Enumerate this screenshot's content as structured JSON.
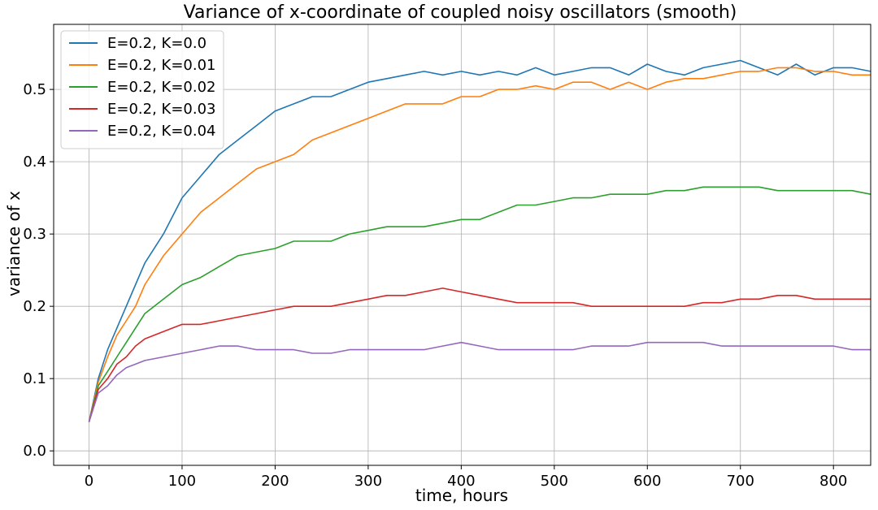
{
  "chart_data": {
    "type": "line",
    "title": "Variance of x-coordinate of coupled noisy oscillators (smooth)",
    "xlabel": "time, hours",
    "ylabel": "variance of x",
    "xlim": [
      -38,
      840
    ],
    "ylim": [
      -0.02,
      0.59
    ],
    "xticks": [
      0,
      100,
      200,
      300,
      400,
      500,
      600,
      700,
      800
    ],
    "yticks": [
      0.0,
      0.1,
      0.2,
      0.3,
      0.4,
      0.5
    ],
    "ytick_labels": [
      "0.0",
      "0.1",
      "0.2",
      "0.3",
      "0.4",
      "0.5"
    ],
    "grid": true,
    "legend_position": "upper-left",
    "x": [
      0,
      10,
      20,
      30,
      40,
      50,
      60,
      80,
      100,
      120,
      140,
      160,
      180,
      200,
      220,
      240,
      260,
      280,
      300,
      320,
      340,
      360,
      380,
      400,
      420,
      440,
      460,
      480,
      500,
      520,
      540,
      560,
      580,
      600,
      620,
      640,
      660,
      680,
      700,
      720,
      740,
      760,
      780,
      800,
      820,
      840
    ],
    "series": [
      {
        "name": "E=0.2, K=0.0",
        "color": "#1f77b4",
        "values": [
          0.04,
          0.1,
          0.14,
          0.17,
          0.2,
          0.23,
          0.26,
          0.3,
          0.35,
          0.38,
          0.41,
          0.43,
          0.45,
          0.47,
          0.48,
          0.49,
          0.49,
          0.5,
          0.51,
          0.515,
          0.52,
          0.525,
          0.52,
          0.525,
          0.52,
          0.525,
          0.52,
          0.53,
          0.52,
          0.525,
          0.53,
          0.53,
          0.52,
          0.535,
          0.525,
          0.52,
          0.53,
          0.535,
          0.54,
          0.53,
          0.52,
          0.535,
          0.52,
          0.53,
          0.53,
          0.525
        ]
      },
      {
        "name": "E=0.2, K=0.01",
        "color": "#ff7f0e",
        "values": [
          0.04,
          0.095,
          0.13,
          0.16,
          0.18,
          0.2,
          0.23,
          0.27,
          0.3,
          0.33,
          0.35,
          0.37,
          0.39,
          0.4,
          0.41,
          0.43,
          0.44,
          0.45,
          0.46,
          0.47,
          0.48,
          0.48,
          0.48,
          0.49,
          0.49,
          0.5,
          0.5,
          0.505,
          0.5,
          0.51,
          0.51,
          0.5,
          0.51,
          0.5,
          0.51,
          0.515,
          0.515,
          0.52,
          0.525,
          0.525,
          0.53,
          0.53,
          0.525,
          0.525,
          0.52,
          0.52
        ]
      },
      {
        "name": "E=0.2, K=0.02",
        "color": "#2ca02c",
        "values": [
          0.04,
          0.09,
          0.11,
          0.13,
          0.15,
          0.17,
          0.19,
          0.21,
          0.23,
          0.24,
          0.255,
          0.27,
          0.275,
          0.28,
          0.29,
          0.29,
          0.29,
          0.3,
          0.305,
          0.31,
          0.31,
          0.31,
          0.315,
          0.32,
          0.32,
          0.33,
          0.34,
          0.34,
          0.345,
          0.35,
          0.35,
          0.355,
          0.355,
          0.355,
          0.36,
          0.36,
          0.365,
          0.365,
          0.365,
          0.365,
          0.36,
          0.36,
          0.36,
          0.36,
          0.36,
          0.355
        ]
      },
      {
        "name": "E=0.2, K=0.03",
        "color": "#d62728",
        "values": [
          0.04,
          0.085,
          0.1,
          0.12,
          0.13,
          0.145,
          0.155,
          0.165,
          0.175,
          0.175,
          0.18,
          0.185,
          0.19,
          0.195,
          0.2,
          0.2,
          0.2,
          0.205,
          0.21,
          0.215,
          0.215,
          0.22,
          0.225,
          0.22,
          0.215,
          0.21,
          0.205,
          0.205,
          0.205,
          0.205,
          0.2,
          0.2,
          0.2,
          0.2,
          0.2,
          0.2,
          0.205,
          0.205,
          0.21,
          0.21,
          0.215,
          0.215,
          0.21,
          0.21,
          0.21,
          0.21
        ]
      },
      {
        "name": "E=0.2, K=0.04",
        "color": "#9467bd",
        "values": [
          0.04,
          0.08,
          0.09,
          0.105,
          0.115,
          0.12,
          0.125,
          0.13,
          0.135,
          0.14,
          0.145,
          0.145,
          0.14,
          0.14,
          0.14,
          0.135,
          0.135,
          0.14,
          0.14,
          0.14,
          0.14,
          0.14,
          0.145,
          0.15,
          0.145,
          0.14,
          0.14,
          0.14,
          0.14,
          0.14,
          0.145,
          0.145,
          0.145,
          0.15,
          0.15,
          0.15,
          0.15,
          0.145,
          0.145,
          0.145,
          0.145,
          0.145,
          0.145,
          0.145,
          0.14,
          0.14
        ]
      }
    ]
  }
}
